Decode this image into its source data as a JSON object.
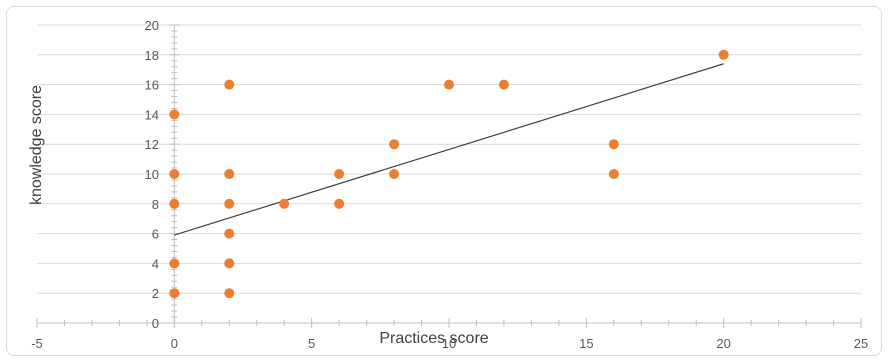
{
  "chart_data": {
    "type": "scatter",
    "title": "",
    "xlabel": "Practices score",
    "ylabel": "knowledge score",
    "xlim": [
      -5,
      25
    ],
    "ylim": [
      0,
      20
    ],
    "x_ticks": [
      -5,
      0,
      5,
      10,
      15,
      20,
      25
    ],
    "y_ticks": [
      0,
      2,
      4,
      6,
      8,
      10,
      12,
      14,
      16,
      18,
      20
    ],
    "x_tick_labels": [
      "-5",
      "0",
      "5",
      "10",
      "15",
      "20",
      "25"
    ],
    "y_tick_labels": [
      "0",
      "2",
      "4",
      "6",
      "8",
      "10",
      "12",
      "14",
      "16",
      "18",
      "20"
    ],
    "grid": "horizontal",
    "legend": "none",
    "series": [
      {
        "marker_color": "#ED7D31",
        "points": [
          {
            "x": 0,
            "y": 2
          },
          {
            "x": 0,
            "y": 4
          },
          {
            "x": 0,
            "y": 8
          },
          {
            "x": 0,
            "y": 10
          },
          {
            "x": 0,
            "y": 14
          },
          {
            "x": 2,
            "y": 2
          },
          {
            "x": 2,
            "y": 4
          },
          {
            "x": 2,
            "y": 6
          },
          {
            "x": 2,
            "y": 8
          },
          {
            "x": 2,
            "y": 10
          },
          {
            "x": 2,
            "y": 16
          },
          {
            "x": 4,
            "y": 8
          },
          {
            "x": 6,
            "y": 8
          },
          {
            "x": 6,
            "y": 10
          },
          {
            "x": 8,
            "y": 10
          },
          {
            "x": 8,
            "y": 12
          },
          {
            "x": 10,
            "y": 16
          },
          {
            "x": 12,
            "y": 16
          },
          {
            "x": 16,
            "y": 10
          },
          {
            "x": 16,
            "y": 12
          },
          {
            "x": 20,
            "y": 18
          }
        ]
      }
    ],
    "trendline": {
      "type": "linear",
      "x_start": 0,
      "x_end": 20,
      "y_start": 5.9,
      "y_end": 17.4,
      "color": "#404040"
    },
    "colors": {
      "grid": "#d9d9d9",
      "axis": "#bfbfbf",
      "marker": "#ED7D31"
    }
  }
}
